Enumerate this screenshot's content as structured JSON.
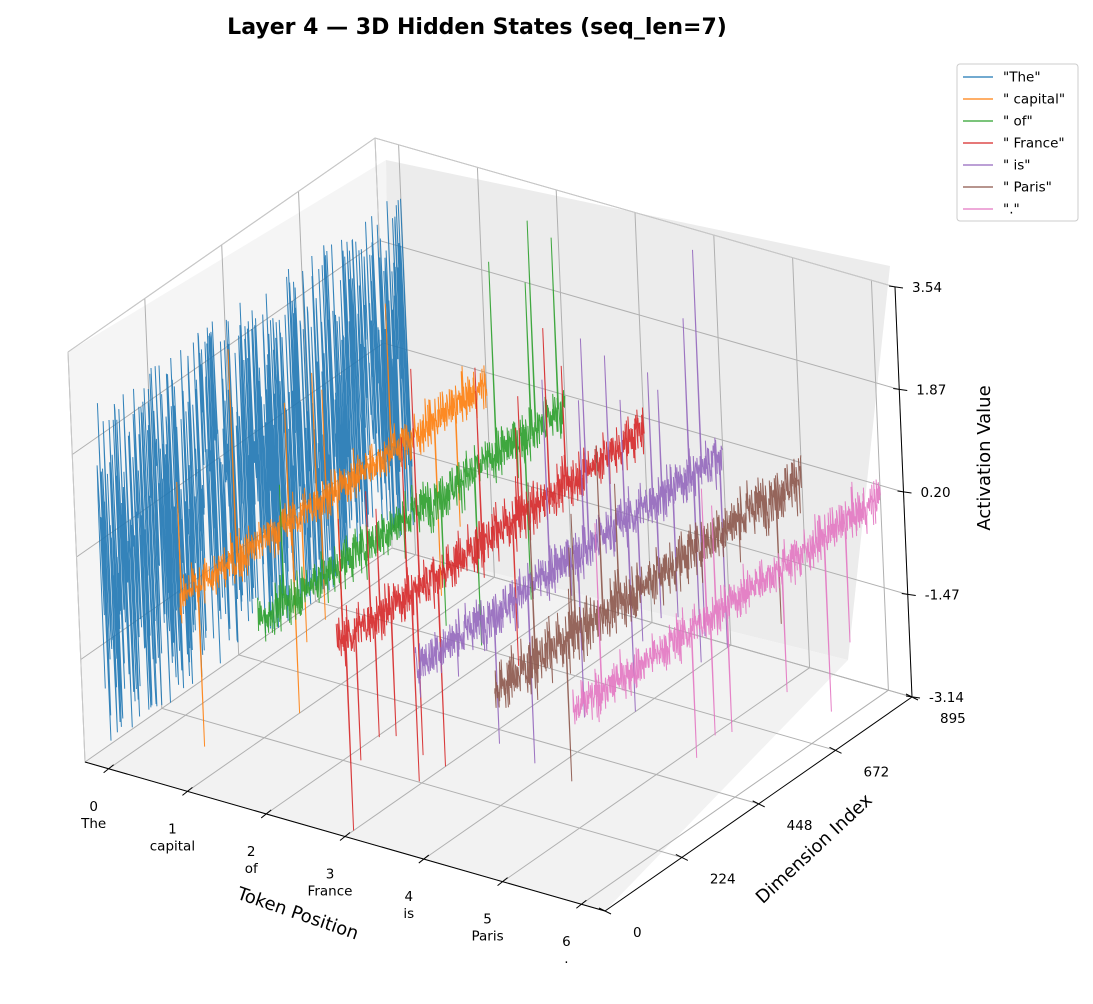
{
  "chart_data": {
    "type": "line",
    "projection": "3d",
    "title": "Layer 4 — 3D Hidden States (seq_len=7)",
    "xlabel": "Token Position",
    "ylabel": "Dimension Index",
    "zlabel": "Activation Value",
    "x_ticks": [
      {
        "value": 0,
        "label": "0\nThe"
      },
      {
        "value": 1,
        "label": "1\ncapital"
      },
      {
        "value": 2,
        "label": "2\nof"
      },
      {
        "value": 3,
        "label": "3\nFrance"
      },
      {
        "value": 4,
        "label": "4\nis"
      },
      {
        "value": 5,
        "label": "5\nParis"
      },
      {
        "value": 6,
        "label": "6\n."
      }
    ],
    "y_ticks": [
      "0",
      "224",
      "448",
      "672",
      "895"
    ],
    "z_ticks": [
      "-3.14",
      "-1.47",
      "0.20",
      "1.87",
      "3.54"
    ],
    "xlim": [
      -0.3,
      6.3
    ],
    "ylim": [
      0,
      895
    ],
    "zlim": [
      -3.14,
      3.54
    ],
    "grid": true,
    "legend_position": "top-right",
    "series": [
      {
        "name": "\"The\"",
        "token_position": 0,
        "color": "#1f77b4",
        "mean": 0.0,
        "noise_amplitude": 2.8,
        "spike_probability": 0.0
      },
      {
        "name": "\" capital\"",
        "token_position": 1,
        "color": "#ff7f0e",
        "mean": 0.0,
        "noise_amplitude": 0.35,
        "spike_probability": 0.01
      },
      {
        "name": "\" of\"",
        "token_position": 2,
        "color": "#2ca02c",
        "mean": 0.0,
        "noise_amplitude": 0.4,
        "spike_probability": 0.012
      },
      {
        "name": "\" France\"",
        "token_position": 3,
        "color": "#d62728",
        "mean": 0.0,
        "noise_amplitude": 0.4,
        "spike_probability": 0.012
      },
      {
        "name": "\" is\"",
        "token_position": 4,
        "color": "#9467bd",
        "mean": 0.0,
        "noise_amplitude": 0.4,
        "spike_probability": 0.012
      },
      {
        "name": "\" Paris\"",
        "token_position": 5,
        "color": "#8c564b",
        "mean": 0.0,
        "noise_amplitude": 0.45,
        "spike_probability": 0.012
      },
      {
        "name": "\".\"",
        "token_position": 6,
        "color": "#e377c2",
        "mean": 0.0,
        "noise_amplitude": 0.35,
        "spike_probability": 0.008
      }
    ]
  }
}
